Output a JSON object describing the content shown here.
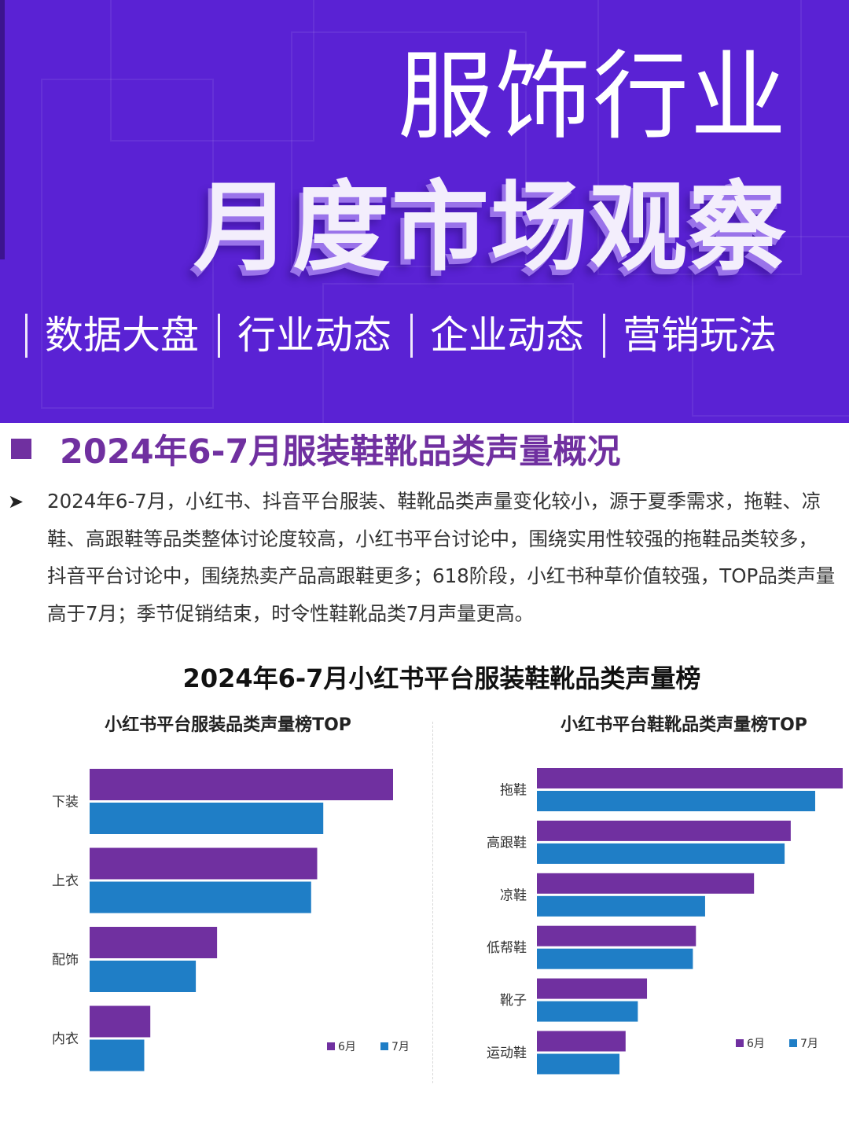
{
  "banner": {
    "title": "服饰行业",
    "subtitle": "月度市场观察",
    "tabs": [
      "数据大盘",
      "行业动态",
      "企业动态",
      "营销玩法"
    ],
    "background_color": "#5a22d4"
  },
  "section": {
    "title": "2024年6-7月服装鞋靴品类声量概况",
    "bullet_icon": "arrow-bullet-icon",
    "paragraph": "2024年6-7月，小红书、抖音平台服装、鞋靴品类声量变化较小，源于夏季需求，拖鞋、凉鞋、高跟鞋等品类整体讨论度较高，小红书平台讨论中，围绕实用性较强的拖鞋品类较多，抖音平台讨论中，围绕热卖产品高跟鞋更多；618阶段，小红书种草价值较强，TOP品类声量高于7月；季节促销结束，时令性鞋靴品类7月声量更高。"
  },
  "chart_title": "2024年6-7月小红书平台服装鞋靴品类声量榜",
  "colors": {
    "june": "#7030a0",
    "july": "#1f7ec6",
    "accent": "#7030a0"
  },
  "chart_data": [
    {
      "type": "bar",
      "orientation": "horizontal",
      "title": "小红书平台服装品类声量榜TOP",
      "categories": [
        "下装",
        "上衣",
        "配饰",
        "内衣"
      ],
      "series": [
        {
          "name": "6月",
          "values": [
            100,
            75,
            42,
            20
          ]
        },
        {
          "name": "7月",
          "values": [
            77,
            73,
            35,
            18
          ]
        }
      ],
      "xlim": [
        0,
        100
      ],
      "legend": "bottom-right",
      "grid": false
    },
    {
      "type": "bar",
      "orientation": "horizontal",
      "title": "小红书平台鞋靴品类声量榜TOP",
      "categories": [
        "拖鞋",
        "高跟鞋",
        "凉鞋",
        "低帮鞋",
        "靴子",
        "运动鞋"
      ],
      "series": [
        {
          "name": "6月",
          "values": [
            100,
            83,
            71,
            52,
            36,
            29
          ]
        },
        {
          "name": "7月",
          "values": [
            91,
            81,
            55,
            51,
            33,
            27
          ]
        }
      ],
      "xlim": [
        0,
        100
      ],
      "legend": "bottom-right",
      "grid": false
    }
  ]
}
